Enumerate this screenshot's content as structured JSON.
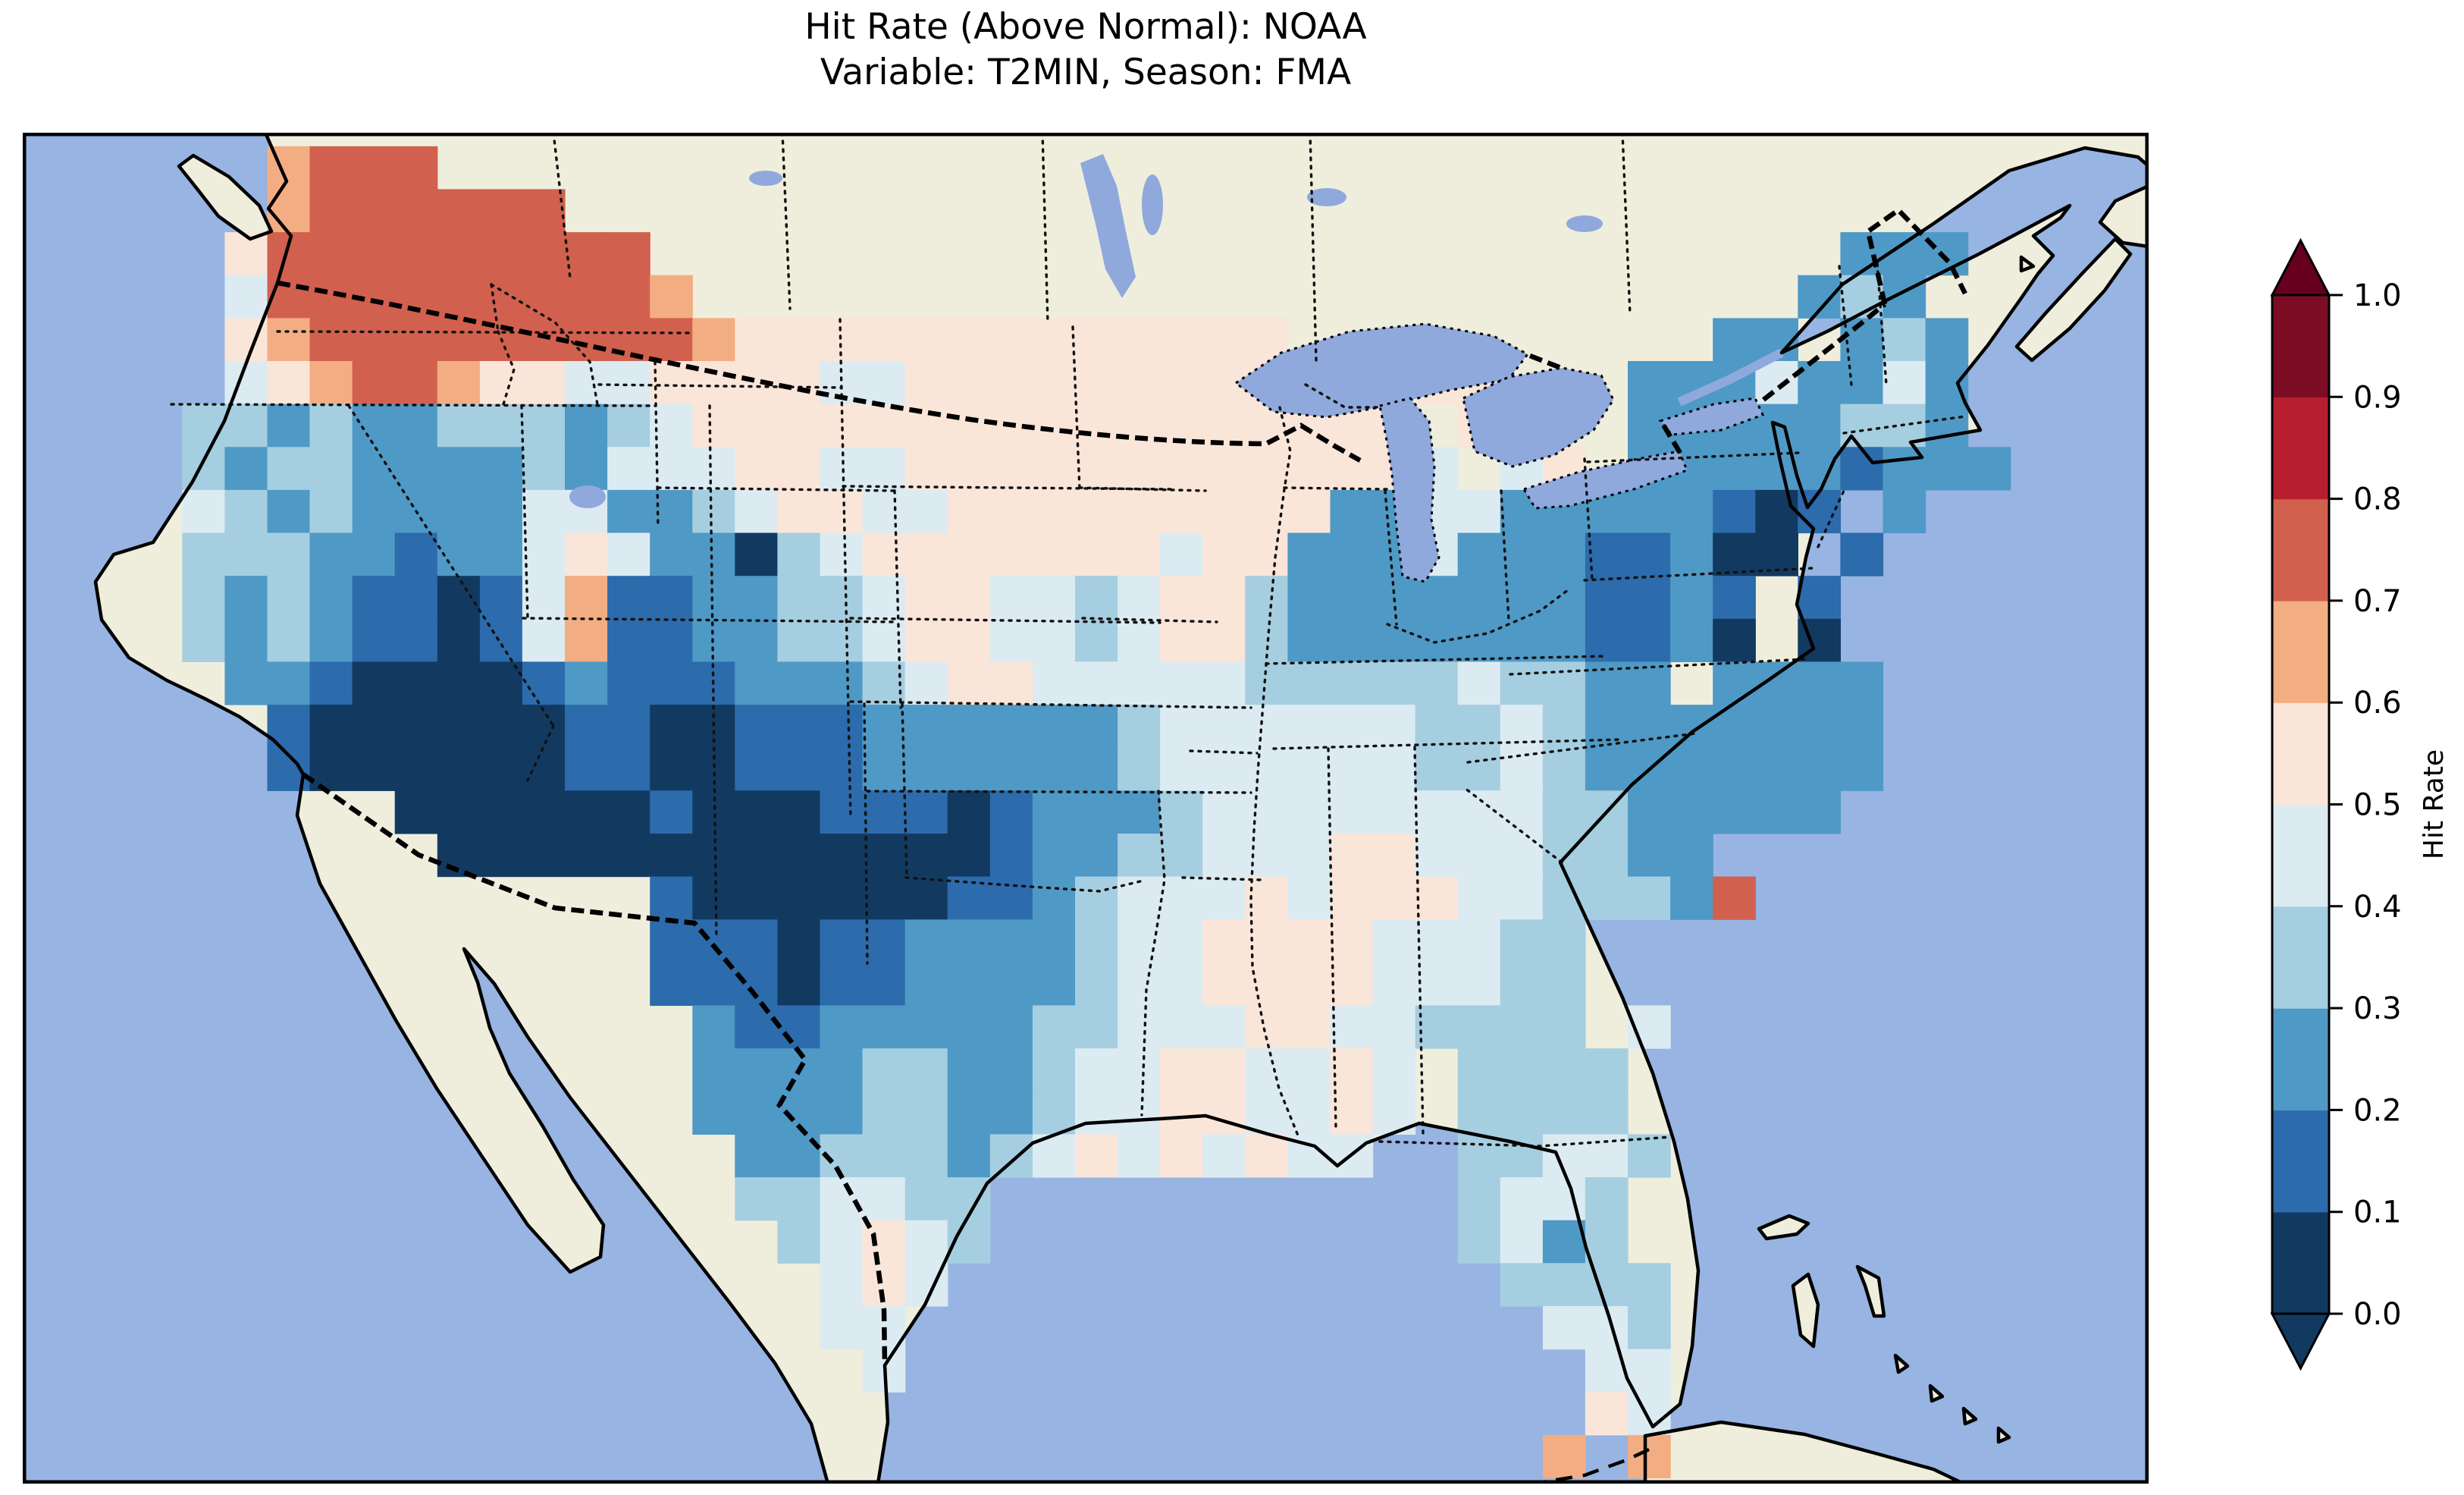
{
  "title": {
    "line1": "Hit Rate (Above Normal): NOAA",
    "line2": "Variable: T2MIN, Season: FMA"
  },
  "colorbar": {
    "label": "Hit Rate",
    "ticks_bottom_to_top": [
      "0.0",
      "0.1",
      "0.2",
      "0.3",
      "0.4",
      "0.5",
      "0.6",
      "0.7",
      "0.8",
      "0.9",
      "1.0"
    ],
    "bin_colors_low_to_high": [
      "#123a61",
      "#2c6bac",
      "#4f99c6",
      "#a6cee1",
      "#dcebf2",
      "#fae5d9",
      "#f3ad83",
      "#d2604f",
      "#b81f2e",
      "#7c0d25"
    ],
    "extend_low_color": "#123a61",
    "extend_high_color": "#67001f",
    "extend": "both"
  },
  "map": {
    "ocean_color": "#97b4e2",
    "land_color": "#efeedd",
    "lake_color": "#8fa9dd",
    "coast_color": "#000000"
  },
  "chart_data": {
    "type": "heatmap",
    "title": "Hit Rate (Above Normal): NOAA",
    "subtitle": "Variable: T2MIN, Season: FMA",
    "metric": "Hit Rate (Above Normal)",
    "source_label": "NOAA",
    "variable": "T2MIN",
    "season": "FMA",
    "region": "Contiguous United States (map window includes S Canada, N Mexico, Gulf of Mexico, Bahamas, Cuba)",
    "colormap": "RdBu_r, discrete 0.1 bins, extend both (arrows at 0.0 and 1.0)",
    "value_range": [
      0.0,
      1.0
    ],
    "colorbar_label": "Hit Rate",
    "colorbar_ticks": [
      0.0,
      0.1,
      0.2,
      0.3,
      0.4,
      0.5,
      0.6,
      0.7,
      0.8,
      0.9,
      1.0
    ],
    "pattern_notes": [
      "High hit rates (0.6-0.8, red/orange) over Washington, N Idaho and W Montana",
      "Pale pink 0.5-0.6 across N Plains, upper Midwest and Michigan",
      "Very low hit rates 0.0-0.1 (dark navy) over Arizona, New Mexico, S Nevada, SE California and the Texas panhandle / W Oklahoma",
      "Dark navy 0.0-0.1 pocket around Chesapeake Bay / Mid-Atlantic coast",
      "Broad 0.2-0.3 blues over Ohio Valley, Appalachians, Texas and Southeast",
      "Pale pink pockets along Mississippi/Alabama and S Florida tip; 3 orange 0.6-0.7 cells near the Florida Keys"
    ],
    "grid": {
      "description": "Coarse recreation of the gridded hit-rate field. Digits are 0.1-wide bins: 0 = 0.0-0.1 ... 9 = 0.9-1.0; '.' = no data (outside CONUS).",
      "cols": 45,
      "rows": 31,
      "origin_frac": [
        0.015,
        0.01
      ],
      "cell_frac": [
        0.02,
        0.0318
      ],
      "value_encoding": {
        "0": 0.05,
        "1": 0.15,
        "2": 0.25,
        "3": 0.35,
        "4": 0.45,
        "5": 0.55,
        "6": 0.65,
        "7": 0.75,
        "8": 0.85,
        "9": 0.95,
        ".": null
      },
      "rows_data": [
        ".....6777....................................",
        ".....6777777.................................",
        "....5777777777............................222",
        "....47777777776..........................232.",
        "....5677777777765555555555555..........22.232",
        "....456776554455554455555555555.55...22242242",
        "...33232233323455555555555555555.54..22222332.",
        "...323322223244455445555555555554.45.222221222.",
        "...432322224422345544555555555224422222101 2..",
        "...33322122454220345555555455222422211200 1...",
        "...3232110146112233455443455322222221121 1....",
        "...3232110146112233455443455322222221120 0....",
        "....2210000121112223455444443333343322 2222...",
        ".....10000001100111222222344444433432222222..",
        ".....10000001100111222222344444433432222222..",
        "........0000001000111012223444444443322222....",
        ".........000000000000012233444554443322......",
        "..............10000001123444545554433327......",
        "..............1110112222344555544433.........",
        "..............1110112222344555544433.........",
        "...............211222223344455443333 4........",
        "...............22223322344554454 3333........",
        "...............22223322344554454 3333........",
        "................223332345454544..33443.........",
        "................334433...........3443........",
        ".................34543...........3423........",
        "..................454.............3333........",
        "..................44...............443........",
        "...................4................44........",
        "....................................54.......",
        "...................................6.6......."
      ]
    }
  }
}
